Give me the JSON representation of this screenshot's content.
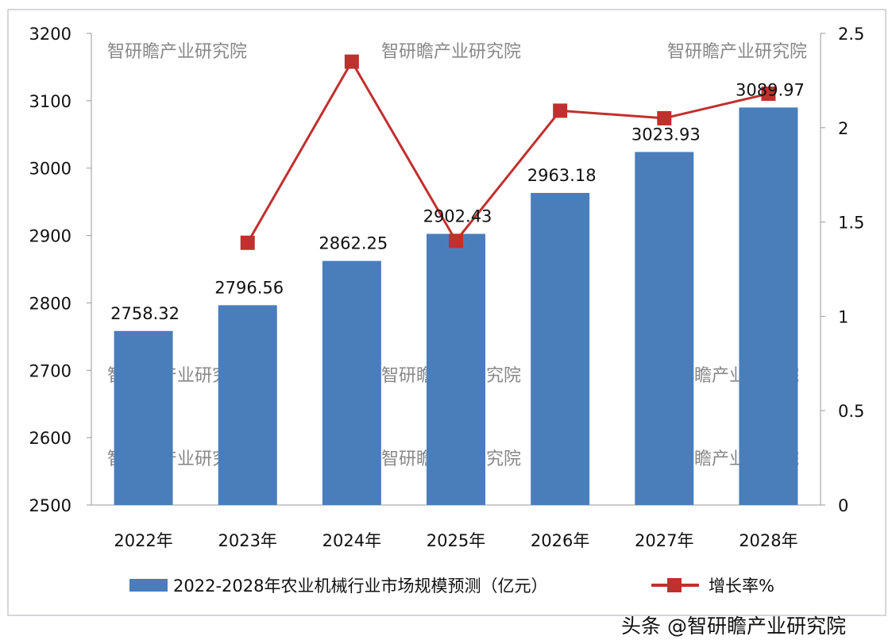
{
  "chart_data": {
    "type": "bar",
    "title": "",
    "categories": [
      "2022年",
      "2023年",
      "2024年",
      "2025年",
      "2026年",
      "2027年",
      "2028年"
    ],
    "series": [
      {
        "name": "2022-2028年农业机械行业市场规模预测（亿元）",
        "type": "bar",
        "axis": "left",
        "color": "#4a7ebb",
        "values": [
          2758.32,
          2796.56,
          2862.25,
          2902.43,
          2963.18,
          3023.93,
          3089.97
        ],
        "labels": [
          "2758.32",
          "2796.56",
          "2862.25",
          "2902.43",
          "2963.18",
          "3023.93",
          "3089.97"
        ]
      },
      {
        "name": "增长率%",
        "type": "line",
        "axis": "right",
        "color": "#c0302e",
        "values": [
          null,
          1.39,
          2.35,
          1.4,
          2.09,
          2.05,
          2.18
        ]
      }
    ],
    "y_left": {
      "range": [
        2500,
        3200
      ],
      "ticks": [
        "2500",
        "2600",
        "2700",
        "2800",
        "2900",
        "3000",
        "3100",
        "3200"
      ]
    },
    "y_right": {
      "range": [
        0,
        2.5
      ],
      "ticks": [
        "0",
        "0.5",
        "1",
        "1.5",
        "2",
        "2.5"
      ]
    },
    "grid": false,
    "legend": "bottom"
  },
  "watermark": "智研瞻产业研究院",
  "source_watermark": "头条 @智研瞻产业研究院"
}
